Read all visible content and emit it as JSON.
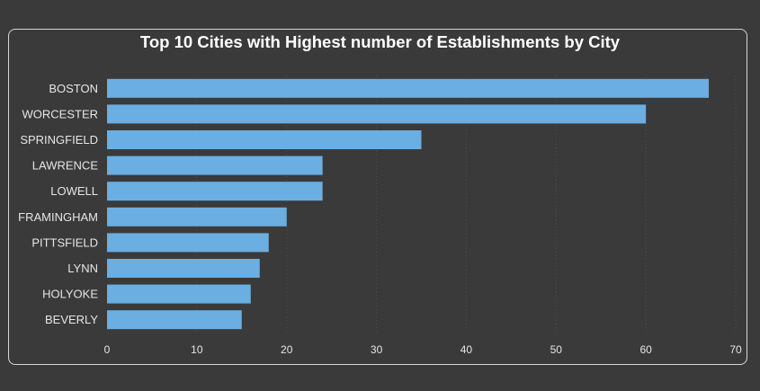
{
  "colors": {
    "background": "#3a3a3a",
    "bar": "#6aaee2",
    "text": "#e6e6e6",
    "title": "#ffffff",
    "grid": "#4e4e4e"
  },
  "chart_data": {
    "type": "bar",
    "orientation": "horizontal",
    "title": "Top 10 Cities with Highest number of Establishments by City",
    "xlabel": "",
    "ylabel": "",
    "categories": [
      "BOSTON",
      "WORCESTER",
      "SPRINGFIELD",
      "LAWRENCE",
      "LOWELL",
      "FRAMINGHAM",
      "PITTSFIELD",
      "LYNN",
      "HOLYOKE",
      "BEVERLY"
    ],
    "values": [
      67,
      60,
      35,
      24,
      24,
      20,
      18,
      17,
      16,
      15
    ],
    "xlim": [
      0,
      70
    ],
    "xticks": [
      0,
      10,
      20,
      30,
      40,
      50,
      60,
      70
    ],
    "grid": true,
    "legend": "none"
  }
}
